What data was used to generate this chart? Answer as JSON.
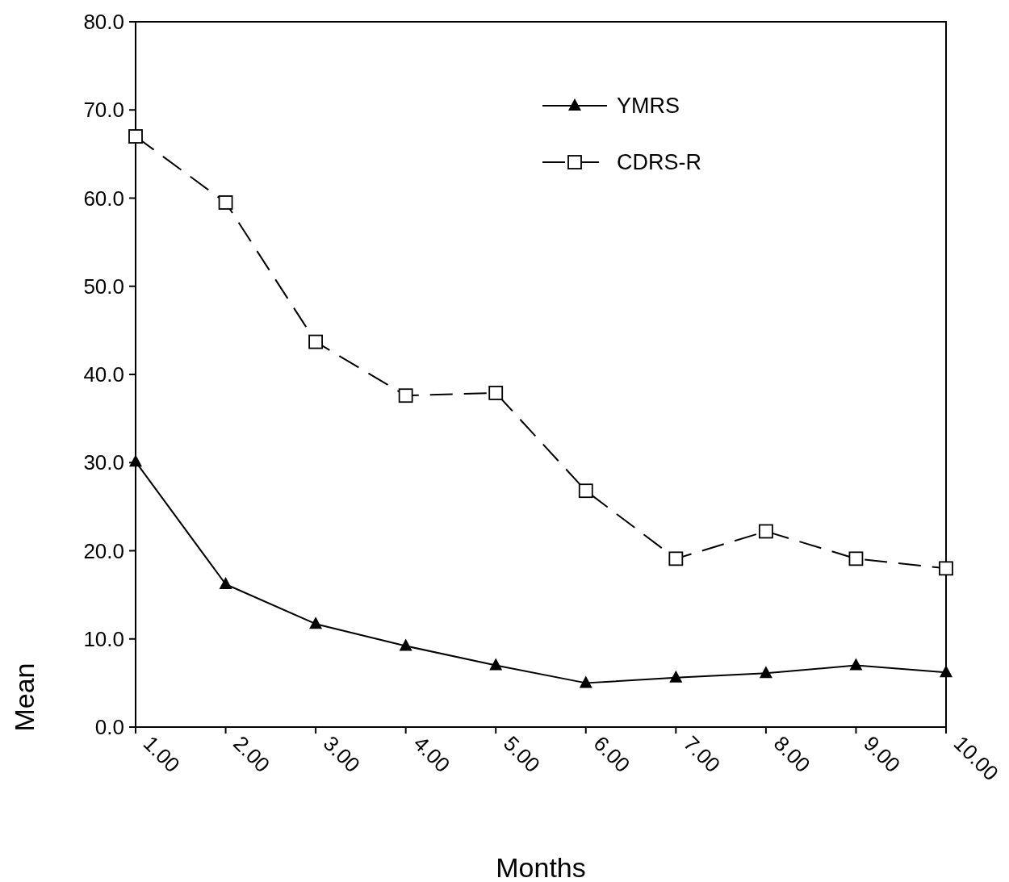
{
  "chart_data": {
    "type": "line",
    "xlabel": "Months",
    "ylabel": "Mean",
    "xlim": [
      1,
      10
    ],
    "xticks": [
      {
        "value": 1,
        "label": "1.00"
      },
      {
        "value": 2,
        "label": "2.00"
      },
      {
        "value": 3,
        "label": "3.00"
      },
      {
        "value": 4,
        "label": "4.00"
      },
      {
        "value": 5,
        "label": "5.00"
      },
      {
        "value": 6,
        "label": "6.00"
      },
      {
        "value": 7,
        "label": "7.00"
      },
      {
        "value": 8,
        "label": "8.00"
      },
      {
        "value": 9,
        "label": "9.00"
      },
      {
        "value": 10,
        "label": "10.00"
      }
    ],
    "ylim": [
      0,
      80
    ],
    "yticks": [
      {
        "value": 0,
        "label": "0.0"
      },
      {
        "value": 10,
        "label": "10.0"
      },
      {
        "value": 20,
        "label": "20.0"
      },
      {
        "value": 30,
        "label": "30.0"
      },
      {
        "value": 40,
        "label": "40.0"
      },
      {
        "value": 50,
        "label": "50.0"
      },
      {
        "value": 60,
        "label": "60.0"
      },
      {
        "value": 70,
        "label": "70.0"
      },
      {
        "value": 80,
        "label": "80.0"
      }
    ],
    "x": [
      1,
      2,
      3,
      4,
      5,
      6,
      7,
      8,
      9,
      10
    ],
    "series": [
      {
        "name": "YMRS",
        "color": "#000000",
        "marker": "triangle",
        "line_style": "solid",
        "values": [
          30.1,
          16.2,
          11.7,
          9.2,
          7.0,
          5.0,
          5.6,
          6.1,
          7.0,
          6.2
        ]
      },
      {
        "name": "CDRS-R",
        "color": "#000000",
        "marker": "square",
        "line_style": "dashed",
        "values": [
          67.0,
          59.5,
          43.7,
          37.6,
          37.9,
          26.8,
          19.1,
          22.2,
          19.1,
          18.0
        ]
      }
    ],
    "legend": "top right",
    "grid": false
  }
}
